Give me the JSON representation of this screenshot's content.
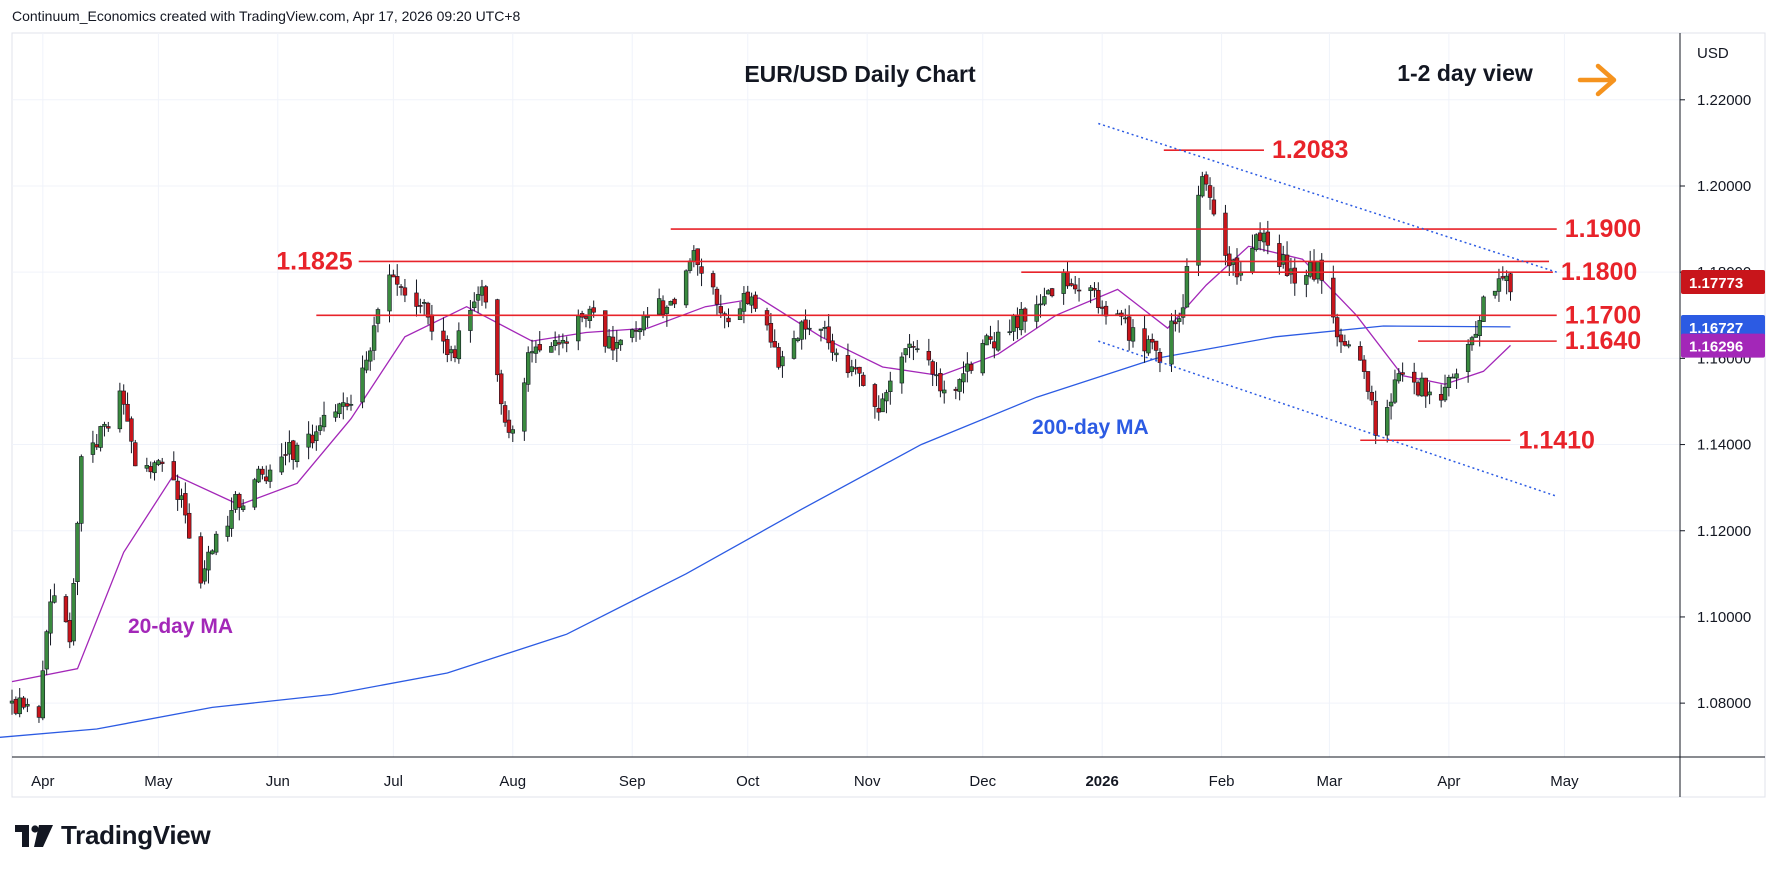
{
  "header": {
    "credit": "Continuum_Economics created with TradingView.com, Apr 17, 2026 09:20 UTC+8"
  },
  "footer": {
    "brand": "TradingView"
  },
  "colors": {
    "candle_up": "#3a8a3f",
    "candle_down": "#c8151b",
    "ma20": "#a327b8",
    "ma200": "#2c5be3",
    "level": "#e8232a",
    "trend": "#2c5be3",
    "arrow": "#f5931e",
    "last_price": "#c8151b"
  },
  "chart_data": {
    "type": "candlestick",
    "title": "EUR/USD Daily Chart",
    "view_label": "1-2 day view",
    "view_icon": "right-arrow-icon",
    "currency_label": "USD",
    "x_range": [
      "2025-03-24",
      "2026-05-31"
    ],
    "ylim": [
      1.0675,
      1.2355
    ],
    "y_ticks": [
      1.08,
      1.1,
      1.12,
      1.14,
      1.16,
      1.18,
      1.2,
      1.22
    ],
    "y_tick_labels": [
      "1.08000",
      "1.10000",
      "1.12000",
      "1.14000",
      "1.16000",
      "1.18000",
      "1.20000",
      "1.22000"
    ],
    "x_tick_labels": [
      {
        "label": "Apr",
        "date": "2025-04-01"
      },
      {
        "label": "May",
        "date": "2025-05-01"
      },
      {
        "label": "Jun",
        "date": "2025-06-01"
      },
      {
        "label": "Jul",
        "date": "2025-07-01"
      },
      {
        "label": "Aug",
        "date": "2025-08-01"
      },
      {
        "label": "Sep",
        "date": "2025-09-01"
      },
      {
        "label": "Oct",
        "date": "2025-10-01"
      },
      {
        "label": "Nov",
        "date": "2025-11-01"
      },
      {
        "label": "Dec",
        "date": "2025-12-01"
      },
      {
        "label": "2026",
        "date": "2026-01-01",
        "bold": true
      },
      {
        "label": "Feb",
        "date": "2026-02-01"
      },
      {
        "label": "Mar",
        "date": "2026-03-01"
      },
      {
        "label": "Apr",
        "date": "2026-04-01"
      },
      {
        "label": "May",
        "date": "2026-05-01"
      }
    ],
    "grid": true,
    "price_path": [
      [
        "2025-03-24",
        1.08
      ],
      [
        "2025-03-31",
        1.079
      ],
      [
        "2025-04-03",
        1.105
      ],
      [
        "2025-04-08",
        1.096
      ],
      [
        "2025-04-11",
        1.135
      ],
      [
        "2025-04-21",
        1.151
      ],
      [
        "2025-04-25",
        1.137
      ],
      [
        "2025-05-05",
        1.133
      ],
      [
        "2025-05-12",
        1.109
      ],
      [
        "2025-05-20",
        1.125
      ],
      [
        "2025-05-30",
        1.135
      ],
      [
        "2025-06-10",
        1.142
      ],
      [
        "2025-06-20",
        1.15
      ],
      [
        "2025-07-01",
        1.18
      ],
      [
        "2025-07-10",
        1.17
      ],
      [
        "2025-07-16",
        1.16
      ],
      [
        "2025-07-24",
        1.176
      ],
      [
        "2025-07-31",
        1.141
      ],
      [
        "2025-08-05",
        1.159
      ],
      [
        "2025-08-14",
        1.165
      ],
      [
        "2025-08-22",
        1.17
      ],
      [
        "2025-08-27",
        1.162
      ],
      [
        "2025-09-05",
        1.171
      ],
      [
        "2025-09-12",
        1.173
      ],
      [
        "2025-09-17",
        1.186
      ],
      [
        "2025-09-25",
        1.168
      ],
      [
        "2025-10-01",
        1.174
      ],
      [
        "2025-10-09",
        1.16
      ],
      [
        "2025-10-17",
        1.169
      ],
      [
        "2025-10-24",
        1.162
      ],
      [
        "2025-11-04",
        1.149
      ],
      [
        "2025-11-13",
        1.164
      ],
      [
        "2025-11-21",
        1.152
      ],
      [
        "2025-12-01",
        1.162
      ],
      [
        "2025-12-10",
        1.169
      ],
      [
        "2025-12-16",
        1.175
      ],
      [
        "2025-12-24",
        1.179
      ],
      [
        "2026-01-02",
        1.172
      ],
      [
        "2026-01-09",
        1.165
      ],
      [
        "2026-01-16",
        1.16
      ],
      [
        "2026-01-22",
        1.174
      ],
      [
        "2026-01-27",
        1.204
      ],
      [
        "2026-02-02",
        1.185
      ],
      [
        "2026-02-05",
        1.18
      ],
      [
        "2026-02-11",
        1.189
      ],
      [
        "2026-02-20",
        1.178
      ],
      [
        "2026-02-26",
        1.181
      ],
      [
        "2026-03-03",
        1.166
      ],
      [
        "2026-03-09",
        1.16
      ],
      [
        "2026-03-13",
        1.144
      ],
      [
        "2026-03-20",
        1.157
      ],
      [
        "2026-03-25",
        1.153
      ],
      [
        "2026-03-31",
        1.152
      ],
      [
        "2026-04-03",
        1.156
      ],
      [
        "2026-04-08",
        1.168
      ],
      [
        "2026-04-13",
        1.178
      ],
      [
        "2026-04-17",
        1.1777
      ]
    ],
    "levels": [
      {
        "label": "1.2083",
        "value": 1.2083,
        "from": "2026-01-17",
        "to": "2026-02-12",
        "label_side": "right"
      },
      {
        "label": "1.1900",
        "value": 1.19,
        "from": "2025-09-11",
        "to": "2026-04-29",
        "label_side": "right"
      },
      {
        "label": "1.1825",
        "value": 1.1825,
        "from": "2025-06-22",
        "to": "2026-04-27",
        "label_side": "left"
      },
      {
        "label": "1.1800",
        "value": 1.18,
        "from": "2025-12-11",
        "to": "2026-04-28",
        "label_side": "right"
      },
      {
        "label": "1.1700",
        "value": 1.17,
        "from": "2025-06-11",
        "to": "2026-04-29",
        "label_side": "right"
      },
      {
        "label": "1.1640",
        "value": 1.164,
        "from": "2026-03-24",
        "to": "2026-04-29",
        "label_side": "right"
      },
      {
        "label": "1.1410",
        "value": 1.141,
        "from": "2026-03-09",
        "to": "2026-04-17",
        "label_side": "right"
      }
    ],
    "trendlines": [
      {
        "from": [
          "2025-12-31",
          1.2145
        ],
        "to": [
          "2026-04-29",
          1.18
        ]
      },
      {
        "from": [
          "2025-12-31",
          1.164
        ],
        "to": [
          "2026-04-29",
          1.128
        ]
      }
    ],
    "series": [
      {
        "name": "20-day MA",
        "last_value": 1.16296,
        "last_label": "1.16296",
        "points": [
          [
            "2025-03-24",
            1.085
          ],
          [
            "2025-04-10",
            1.088
          ],
          [
            "2025-04-22",
            1.115
          ],
          [
            "2025-05-05",
            1.133
          ],
          [
            "2025-05-22",
            1.126
          ],
          [
            "2025-06-06",
            1.131
          ],
          [
            "2025-06-20",
            1.146
          ],
          [
            "2025-07-04",
            1.165
          ],
          [
            "2025-07-20",
            1.172
          ],
          [
            "2025-08-06",
            1.164
          ],
          [
            "2025-08-20",
            1.166
          ],
          [
            "2025-09-05",
            1.167
          ],
          [
            "2025-09-20",
            1.172
          ],
          [
            "2025-10-04",
            1.174
          ],
          [
            "2025-10-20",
            1.165
          ],
          [
            "2025-11-05",
            1.158
          ],
          [
            "2025-11-20",
            1.156
          ],
          [
            "2025-12-05",
            1.161
          ],
          [
            "2025-12-20",
            1.17
          ],
          [
            "2026-01-05",
            1.176
          ],
          [
            "2026-01-18",
            1.167
          ],
          [
            "2026-01-28",
            1.177
          ],
          [
            "2026-02-08",
            1.186
          ],
          [
            "2026-02-22",
            1.183
          ],
          [
            "2026-03-08",
            1.17
          ],
          [
            "2026-03-20",
            1.156
          ],
          [
            "2026-03-31",
            1.154
          ],
          [
            "2026-04-10",
            1.157
          ],
          [
            "2026-04-17",
            1.163
          ]
        ]
      },
      {
        "name": "200-day MA",
        "last_value": 1.16727,
        "last_label": "1.16727",
        "points": [
          [
            "2025-03-20",
            1.072
          ],
          [
            "2025-04-15",
            1.074
          ],
          [
            "2025-05-15",
            1.079
          ],
          [
            "2025-06-15",
            1.082
          ],
          [
            "2025-07-15",
            1.087
          ],
          [
            "2025-08-15",
            1.096
          ],
          [
            "2025-09-15",
            1.11
          ],
          [
            "2025-10-15",
            1.125
          ],
          [
            "2025-11-15",
            1.14
          ],
          [
            "2025-12-15",
            1.151
          ],
          [
            "2026-01-15",
            1.16
          ],
          [
            "2026-02-15",
            1.165
          ],
          [
            "2026-03-15",
            1.1675
          ],
          [
            "2026-04-17",
            1.1673
          ]
        ]
      }
    ],
    "last_price": {
      "value": 1.17773,
      "label": "1.17773"
    }
  }
}
